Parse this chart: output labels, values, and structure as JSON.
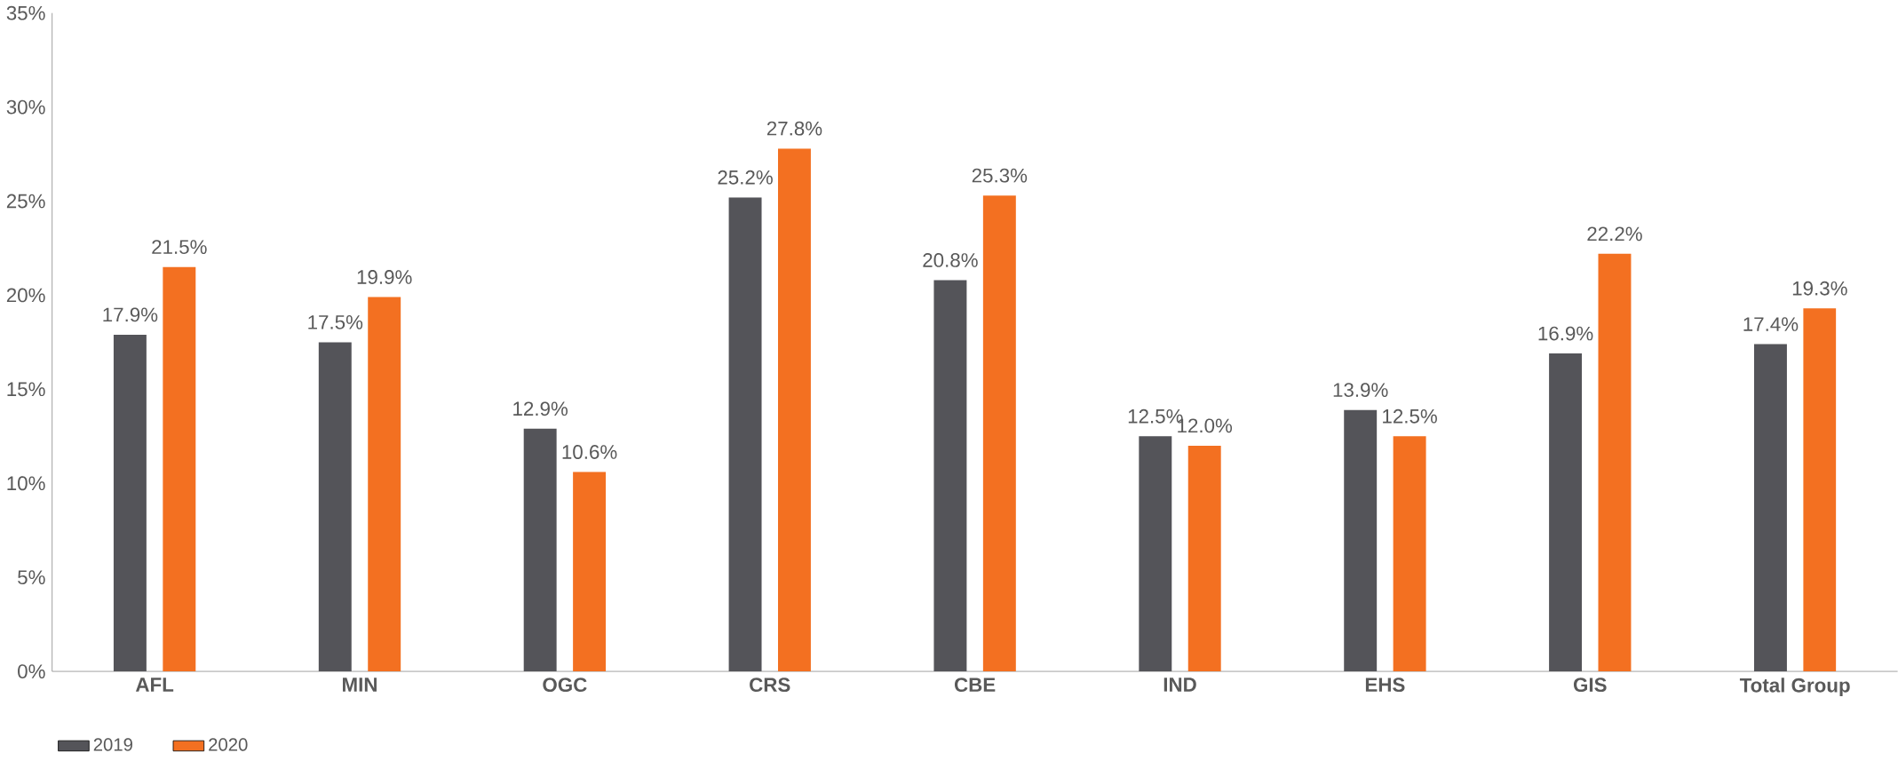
{
  "chart_data": {
    "type": "bar",
    "categories": [
      "AFL",
      "MIN",
      "OGC",
      "CRS",
      "CBE",
      "IND",
      "EHS",
      "GIS",
      "Total Group"
    ],
    "series": [
      {
        "name": "2019",
        "color": "#545459",
        "values": [
          17.9,
          17.5,
          12.9,
          25.2,
          20.8,
          12.5,
          13.9,
          16.9,
          17.4
        ],
        "value_labels": [
          "17.9%",
          "17.5%",
          "12.9%",
          "25.2%",
          "20.8%",
          "12.5%",
          "13.9%",
          "16.9%",
          "17.4%"
        ]
      },
      {
        "name": "2020",
        "color": "#f37021",
        "values": [
          21.5,
          19.9,
          10.6,
          27.8,
          25.3,
          12.0,
          12.5,
          22.2,
          19.3
        ],
        "value_labels": [
          "21.5%",
          "19.9%",
          "10.6%",
          "27.8%",
          "25.3%",
          "12.0%",
          "12.5%",
          "22.2%",
          "19.3%"
        ]
      }
    ],
    "ylim": [
      0,
      35
    ],
    "yticks": [
      {
        "value": 0,
        "label": "0%"
      },
      {
        "value": 5,
        "label": "5%"
      },
      {
        "value": 10,
        "label": "10%"
      },
      {
        "value": 15,
        "label": "15%"
      },
      {
        "value": 20,
        "label": "20%"
      },
      {
        "value": 25,
        "label": "25%"
      },
      {
        "value": 30,
        "label": "30%"
      },
      {
        "value": 35,
        "label": "35%"
      }
    ],
    "grid": false,
    "legend": "bottom left"
  }
}
